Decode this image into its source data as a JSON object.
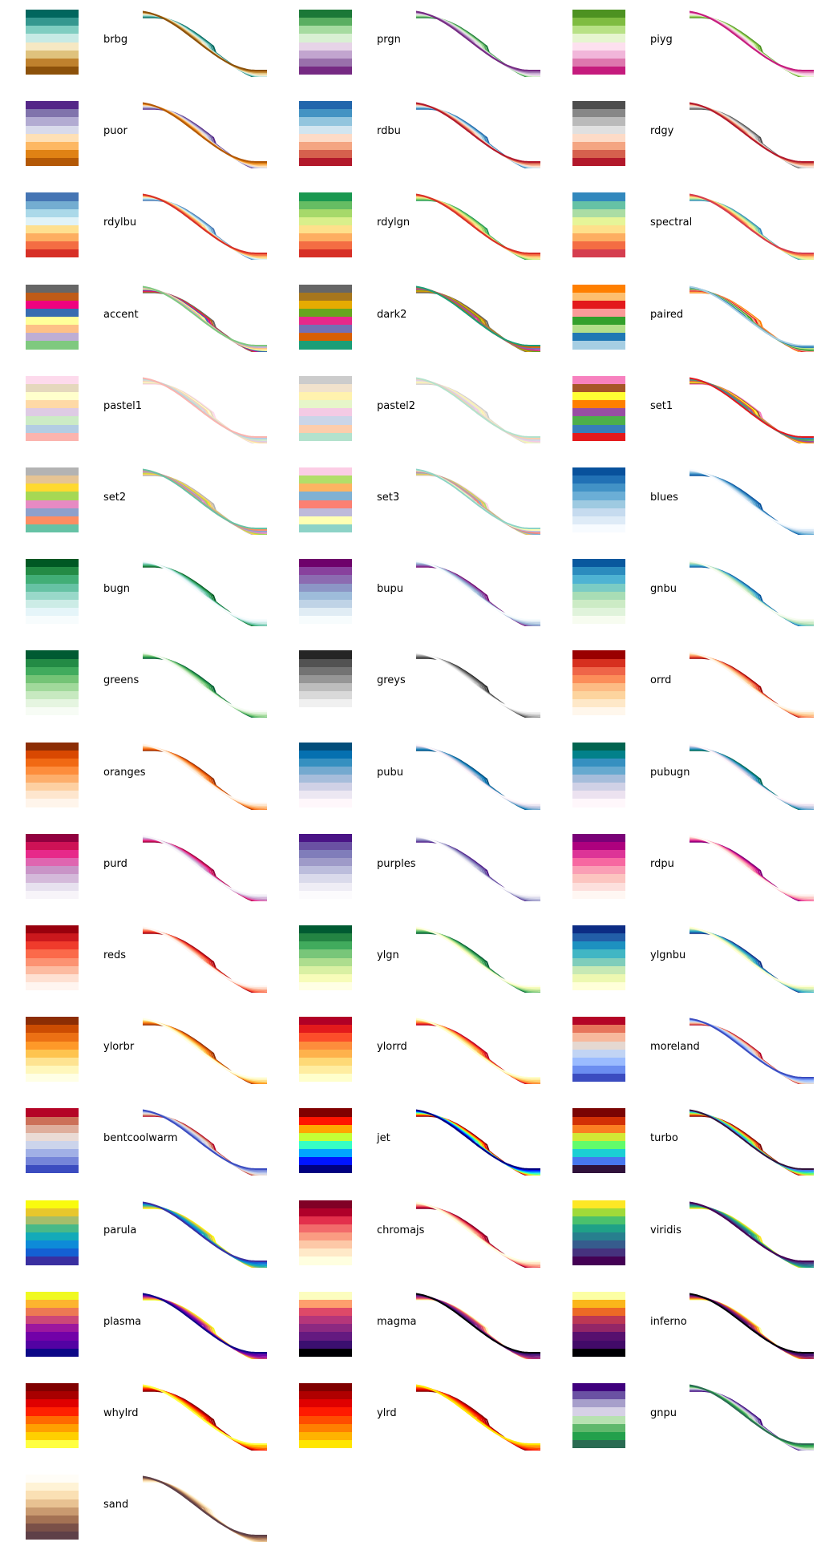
{
  "chart_data": {
    "type": "line",
    "title": "",
    "xlabel": "",
    "ylabel": "",
    "grid": false,
    "legend": "none",
    "curve_shape": "descending-sigmoid",
    "palettes": [
      {
        "name": "brbg",
        "colors": [
          "#01665e",
          "#35978f",
          "#80cdc1",
          "#c7eae5",
          "#f6e8c3",
          "#dfc27d",
          "#bf812d",
          "#8c510a"
        ]
      },
      {
        "name": "prgn",
        "colors": [
          "#1b7837",
          "#5aae61",
          "#a6dba0",
          "#d9f0d3",
          "#e7d4e8",
          "#c2a5cf",
          "#9970ab",
          "#762a83"
        ]
      },
      {
        "name": "piyg",
        "colors": [
          "#4d9221",
          "#7fbc41",
          "#b8e186",
          "#e6f5d0",
          "#fde0ef",
          "#f1b6da",
          "#de77ae",
          "#c51b7d"
        ]
      },
      {
        "name": "puor",
        "colors": [
          "#542788",
          "#8073ac",
          "#b2abd2",
          "#d8daeb",
          "#fee0b6",
          "#fdb863",
          "#e08214",
          "#b35806"
        ]
      },
      {
        "name": "rdbu",
        "colors": [
          "#2166ac",
          "#4393c3",
          "#92c5de",
          "#d1e5f0",
          "#fddbc7",
          "#f4a582",
          "#d6604d",
          "#b2182b"
        ]
      },
      {
        "name": "rdgy",
        "colors": [
          "#4d4d4d",
          "#878787",
          "#bababa",
          "#e0e0e0",
          "#fddbc7",
          "#f4a582",
          "#d6604d",
          "#b2182b"
        ]
      },
      {
        "name": "rdylbu",
        "colors": [
          "#4575b4",
          "#74add1",
          "#abd9e9",
          "#e0f3f8",
          "#fee090",
          "#fdae61",
          "#f46d43",
          "#d73027"
        ]
      },
      {
        "name": "rdylgn",
        "colors": [
          "#1a9850",
          "#66bd63",
          "#a6d96a",
          "#d9ef8b",
          "#fee08b",
          "#fdae61",
          "#f46d43",
          "#d73027"
        ]
      },
      {
        "name": "spectral",
        "colors": [
          "#3288bd",
          "#66c2a5",
          "#abdda4",
          "#e6f598",
          "#fee08b",
          "#fdae61",
          "#f46d43",
          "#d53e4f"
        ]
      },
      {
        "name": "accent",
        "colors": [
          "#666666",
          "#bf5b17",
          "#f0027f",
          "#386cb0",
          "#ffff99",
          "#fdc086",
          "#beaed4",
          "#7fc97f"
        ]
      },
      {
        "name": "dark2",
        "colors": [
          "#666666",
          "#a6761d",
          "#e6ab02",
          "#66a61e",
          "#e7298a",
          "#7570b3",
          "#d95f02",
          "#1b9e77"
        ]
      },
      {
        "name": "paired",
        "colors": [
          "#ff7f00",
          "#fdbf6f",
          "#e31a1c",
          "#fb9a99",
          "#33a02c",
          "#b2df8a",
          "#1f78b4",
          "#a6cee3"
        ]
      },
      {
        "name": "pastel1",
        "colors": [
          "#fddaec",
          "#e5d8bd",
          "#ffffcc",
          "#fed9a6",
          "#decbe4",
          "#ccebc5",
          "#b3cde3",
          "#fbb4ae"
        ]
      },
      {
        "name": "pastel2",
        "colors": [
          "#cccccc",
          "#f1e2cc",
          "#fff2ae",
          "#e6f5c9",
          "#f4cae4",
          "#cbd5e8",
          "#fdcdac",
          "#b3e2cd"
        ]
      },
      {
        "name": "set1",
        "colors": [
          "#f781bf",
          "#a65628",
          "#ffff33",
          "#ff7f00",
          "#984ea3",
          "#4daf4a",
          "#377eb8",
          "#e41a1c"
        ]
      },
      {
        "name": "set2",
        "colors": [
          "#b3b3b3",
          "#e5c494",
          "#ffd92f",
          "#a6d854",
          "#e78ac3",
          "#8da0cb",
          "#fc8d62",
          "#66c2a5"
        ]
      },
      {
        "name": "set3",
        "colors": [
          "#fccde5",
          "#b3de69",
          "#fdb462",
          "#80b1d3",
          "#fb8072",
          "#bebada",
          "#ffffb3",
          "#8dd3c7"
        ]
      },
      {
        "name": "blues",
        "colors": [
          "#08519c",
          "#2171b5",
          "#4292c6",
          "#6baed6",
          "#9ecae1",
          "#c6dbef",
          "#deebf7",
          "#f7fbff"
        ]
      },
      {
        "name": "bugn",
        "colors": [
          "#005824",
          "#238b45",
          "#41ae76",
          "#66c2a4",
          "#99d8c9",
          "#ccece6",
          "#e5f5f9",
          "#f7fcfd"
        ]
      },
      {
        "name": "bupu",
        "colors": [
          "#6e016b",
          "#88419d",
          "#8c6bb1",
          "#8c96c6",
          "#9ebcda",
          "#bfd3e6",
          "#e0ecf4",
          "#f7fcfd"
        ]
      },
      {
        "name": "gnbu",
        "colors": [
          "#08589e",
          "#2b8cbe",
          "#4eb3d3",
          "#7bccc4",
          "#a8ddb5",
          "#ccebc5",
          "#e0f3db",
          "#f7fcf0"
        ]
      },
      {
        "name": "greens",
        "colors": [
          "#005a32",
          "#238b45",
          "#41ab5d",
          "#74c476",
          "#a1d99b",
          "#c7e9c0",
          "#e5f5e0",
          "#f7fcf5"
        ]
      },
      {
        "name": "greys",
        "colors": [
          "#252525",
          "#525252",
          "#737373",
          "#969696",
          "#bdbdbd",
          "#d9d9d9",
          "#f0f0f0",
          "#ffffff"
        ]
      },
      {
        "name": "orrd",
        "colors": [
          "#990000",
          "#d7301f",
          "#ef6548",
          "#fc8d59",
          "#fdbb84",
          "#fdd49e",
          "#fee8c8",
          "#fff7ec"
        ]
      },
      {
        "name": "oranges",
        "colors": [
          "#8c2d04",
          "#d94801",
          "#f16913",
          "#fd8d3c",
          "#fdae6b",
          "#fdd0a2",
          "#fee6ce",
          "#fff5eb"
        ]
      },
      {
        "name": "pubu",
        "colors": [
          "#034e7b",
          "#0570b0",
          "#3690c0",
          "#74a9cf",
          "#a6bddb",
          "#d0d1e6",
          "#ece7f2",
          "#fff7fb"
        ]
      },
      {
        "name": "pubugn",
        "colors": [
          "#016450",
          "#02818a",
          "#3690c0",
          "#67a9cf",
          "#a6bddb",
          "#d0d1e6",
          "#ece2f0",
          "#fff7fb"
        ]
      },
      {
        "name": "purd",
        "colors": [
          "#91003f",
          "#ce1256",
          "#e7298a",
          "#df65b0",
          "#c994c7",
          "#d4b9da",
          "#e7e1ef",
          "#f7f4f9"
        ]
      },
      {
        "name": "purples",
        "colors": [
          "#4a1486",
          "#6a51a3",
          "#807dba",
          "#9e9ac8",
          "#bcbddc",
          "#dadaeb",
          "#efedf5",
          "#fcfbfd"
        ]
      },
      {
        "name": "rdpu",
        "colors": [
          "#7a0177",
          "#ae017e",
          "#dd3497",
          "#f768a1",
          "#fa9fb5",
          "#fcc5c0",
          "#fde0dd",
          "#fff7f3"
        ]
      },
      {
        "name": "reds",
        "colors": [
          "#99000d",
          "#cb181d",
          "#ef3b2c",
          "#fb6a4a",
          "#fc9272",
          "#fcbba1",
          "#fee0d2",
          "#fff5f0"
        ]
      },
      {
        "name": "ylgn",
        "colors": [
          "#005a32",
          "#238443",
          "#41ab5d",
          "#78c679",
          "#addd8e",
          "#d9f0a3",
          "#f7fcb9",
          "#ffffe5"
        ]
      },
      {
        "name": "ylgnbu",
        "colors": [
          "#0c2c84",
          "#225ea8",
          "#1d91c0",
          "#41b6c4",
          "#7fcdbb",
          "#c7e9b4",
          "#edf8b1",
          "#ffffd9"
        ]
      },
      {
        "name": "ylorbr",
        "colors": [
          "#8c2d04",
          "#cc4c02",
          "#ec7014",
          "#fe9929",
          "#fec44f",
          "#fee391",
          "#fff7bc",
          "#ffffe5"
        ]
      },
      {
        "name": "ylorrd",
        "colors": [
          "#b10026",
          "#e31a1c",
          "#fc4e2a",
          "#fd8d3c",
          "#feb24c",
          "#fed976",
          "#ffeda0",
          "#ffffcc"
        ]
      },
      {
        "name": "moreland",
        "colors": [
          "#b40426",
          "#e7745b",
          "#f7b89c",
          "#e5d8d1",
          "#c1d4f4",
          "#9abbff",
          "#6b8df0",
          "#3b4cc0"
        ]
      },
      {
        "name": "bentcoolwarm",
        "colors": [
          "#b40426",
          "#cc7058",
          "#dfae9c",
          "#eadbd5",
          "#ccd4eb",
          "#a1b0e6",
          "#7585d9",
          "#3b4cc0"
        ]
      },
      {
        "name": "jet",
        "colors": [
          "#800000",
          "#ff1400",
          "#ffa700",
          "#c4ff36",
          "#36ffc4",
          "#00a4ff",
          "#0014ff",
          "#000080"
        ]
      },
      {
        "name": "turbo",
        "colors": [
          "#7a0403",
          "#d23105",
          "#fb8022",
          "#d2e935",
          "#62fc6b",
          "#1bcfd4",
          "#4777ef",
          "#30123b"
        ]
      },
      {
        "name": "parula",
        "colors": [
          "#f9fb0e",
          "#e8c72c",
          "#a5be6b",
          "#48b988",
          "#13aab9",
          "#0e8bd8",
          "#1460d3",
          "#3a2fa0"
        ]
      },
      {
        "name": "chromajs",
        "colors": [
          "#800026",
          "#b0002a",
          "#e3304c",
          "#f26b6b",
          "#fa9c82",
          "#fdc8a7",
          "#ffe9c8",
          "#ffffe0"
        ]
      },
      {
        "name": "viridis",
        "colors": [
          "#fde725",
          "#a0da39",
          "#4ac16d",
          "#1fa187",
          "#277f8e",
          "#365c8d",
          "#46327e",
          "#440154"
        ]
      },
      {
        "name": "plasma",
        "colors": [
          "#f0f921",
          "#fdb42f",
          "#ed7953",
          "#cc4778",
          "#9c179e",
          "#7201a8",
          "#5302a3",
          "#0d0887"
        ]
      },
      {
        "name": "magma",
        "colors": [
          "#fcfdbf",
          "#fe9f6d",
          "#de4968",
          "#b5367a",
          "#8c2981",
          "#641a80",
          "#3b0f70",
          "#000004"
        ]
      },
      {
        "name": "inferno",
        "colors": [
          "#fcffa4",
          "#fbb61a",
          "#ed6925",
          "#bc3754",
          "#932667",
          "#57106e",
          "#420a68",
          "#000004"
        ]
      },
      {
        "name": "whylrd",
        "colors": [
          "#800000",
          "#a80000",
          "#e00000",
          "#ff2000",
          "#ff6a00",
          "#ffa000",
          "#ffd000",
          "#ffff40"
        ]
      },
      {
        "name": "ylrd",
        "colors": [
          "#800000",
          "#b00000",
          "#e00000",
          "#ff1a00",
          "#ff4d00",
          "#ff8000",
          "#ffb300",
          "#ffe600"
        ]
      },
      {
        "name": "gnpu",
        "colors": [
          "#3f007d",
          "#6a51a3",
          "#a79fcb",
          "#d6d1e6",
          "#b7e2b1",
          "#5fb86c",
          "#23a04c",
          "#2a6b52"
        ]
      },
      {
        "name": "sand",
        "colors": [
          "#fffdf7",
          "#fff3d6",
          "#fae0b4",
          "#e8c292",
          "#c99a70",
          "#a47254",
          "#7a5048",
          "#5e4048"
        ]
      }
    ]
  }
}
